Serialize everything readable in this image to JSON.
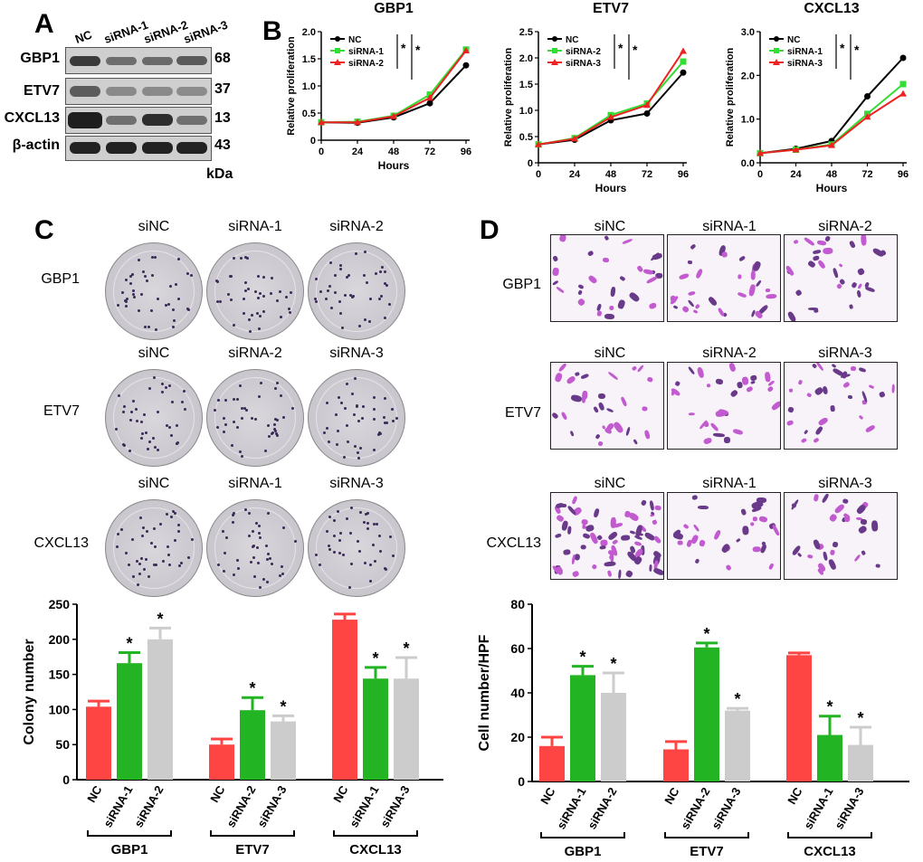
{
  "panel_labels": {
    "A": "A",
    "B": "B",
    "C": "C",
    "D": "D"
  },
  "western_blot": {
    "lanes": [
      "NC",
      "siRNA-1",
      "siRNA-2",
      "siRNA-3"
    ],
    "rows": [
      {
        "protein": "GBP1",
        "kda": "68"
      },
      {
        "protein": "ETV7",
        "kda": "37"
      },
      {
        "protein": "CXCL13",
        "kda": "13"
      },
      {
        "protein": "β-actin",
        "kda": "43"
      }
    ],
    "unit": "kDa"
  },
  "colony_assay": {
    "rows": [
      {
        "gene": "GBP1",
        "columns": [
          "siNC",
          "siRNA-1",
          "siRNA-2"
        ]
      },
      {
        "gene": "ETV7",
        "columns": [
          "siNC",
          "siRNA-2",
          "siRNA-3"
        ]
      },
      {
        "gene": "CXCL13",
        "columns": [
          "siNC",
          "siRNA-1",
          "siRNA-3"
        ]
      }
    ]
  },
  "transwell_assay": {
    "rows": [
      {
        "gene": "GBP1",
        "columns": [
          "siNC",
          "siRNA-1",
          "siRNA-2"
        ]
      },
      {
        "gene": "ETV7",
        "columns": [
          "siNC",
          "siRNA-2",
          "siRNA-3"
        ]
      },
      {
        "gene": "CXCL13",
        "columns": [
          "siNC",
          "siRNA-1",
          "siRNA-3"
        ]
      }
    ]
  },
  "colors": {
    "NC": "#ff4444",
    "siA": "#22b422",
    "siB": "#cccccc",
    "line_NC": "#000000",
    "line_si1": "#33dd33",
    "line_si2": "#ee2222"
  },
  "chart_data": [
    {
      "type": "line",
      "title": "GBP1",
      "xlabel": "Hours",
      "ylabel": "Relative proliferation",
      "x": [
        0,
        24,
        48,
        72,
        96
      ],
      "ylim": [
        0,
        2.0
      ],
      "yticks": [
        "0",
        "0.5",
        "1.0",
        "1.5",
        "2.0"
      ],
      "series": [
        {
          "name": "NC",
          "values": [
            0.33,
            0.32,
            0.42,
            0.68,
            1.38
          ]
        },
        {
          "name": "siRNA-1",
          "values": [
            0.33,
            0.34,
            0.45,
            0.84,
            1.67
          ]
        },
        {
          "name": "siRNA-2",
          "values": [
            0.33,
            0.33,
            0.44,
            0.78,
            1.65
          ]
        }
      ],
      "significance": [
        "*",
        "*"
      ]
    },
    {
      "type": "line",
      "title": "ETV7",
      "xlabel": "Hours",
      "ylabel": "Relative proliferation",
      "x": [
        0,
        24,
        48,
        72,
        96
      ],
      "ylim": [
        0,
        2.5
      ],
      "yticks": [
        "0",
        "0.5",
        "1.0",
        "1.5",
        "2.0",
        "2.5"
      ],
      "series": [
        {
          "name": "NC",
          "values": [
            0.35,
            0.44,
            0.81,
            0.94,
            1.72
          ]
        },
        {
          "name": "siRNA-2",
          "values": [
            0.35,
            0.47,
            0.91,
            1.13,
            1.93
          ]
        },
        {
          "name": "siRNA-3",
          "values": [
            0.35,
            0.46,
            0.87,
            1.1,
            2.13
          ]
        }
      ],
      "significance": [
        "*",
        "*"
      ]
    },
    {
      "type": "line",
      "title": "CXCL13",
      "xlabel": "Hours",
      "ylabel": "Relative proliferation",
      "x": [
        0,
        24,
        48,
        72,
        96
      ],
      "ylim": [
        0,
        3.0
      ],
      "yticks": [
        "0.0",
        "1.0",
        "2.0",
        "3.0"
      ],
      "series": [
        {
          "name": "NC",
          "values": [
            0.22,
            0.32,
            0.5,
            1.52,
            2.4
          ]
        },
        {
          "name": "siRNA-1",
          "values": [
            0.22,
            0.3,
            0.42,
            1.12,
            1.8
          ]
        },
        {
          "name": "siRNA-3",
          "values": [
            0.22,
            0.3,
            0.4,
            1.05,
            1.58
          ]
        }
      ],
      "significance": [
        "*",
        "*"
      ]
    },
    {
      "type": "bar",
      "ylabel": "Colony number",
      "ylim": [
        0,
        250
      ],
      "yticks": [
        "0",
        "50",
        "100",
        "150",
        "200",
        "250"
      ],
      "groups": [
        {
          "gene": "GBP1",
          "categories": [
            "NC",
            "siRNA-1",
            "siRNA-2"
          ],
          "values": [
            104,
            166,
            200
          ],
          "errors": [
            8,
            15,
            16
          ],
          "stars": [
            "",
            "*",
            "*"
          ]
        },
        {
          "gene": "ETV7",
          "categories": [
            "NC",
            "siRNA-2",
            "siRNA-3"
          ],
          "values": [
            50,
            99,
            83
          ],
          "errors": [
            8,
            18,
            8
          ],
          "stars": [
            "",
            "*",
            "*"
          ]
        },
        {
          "gene": "CXCL13",
          "categories": [
            "NC",
            "siRNA-1",
            "siRNA-3"
          ],
          "values": [
            228,
            144,
            144
          ],
          "errors": [
            8,
            16,
            30
          ],
          "stars": [
            "",
            "*",
            "*"
          ]
        }
      ]
    },
    {
      "type": "bar",
      "ylabel": "Cell number/HPF",
      "ylim": [
        0,
        80
      ],
      "yticks": [
        "0",
        "20",
        "40",
        "60",
        "80"
      ],
      "groups": [
        {
          "gene": "GBP1",
          "categories": [
            "NC",
            "siRNA-1",
            "siRNA-2"
          ],
          "values": [
            16,
            48,
            40
          ],
          "errors": [
            4,
            4,
            9
          ],
          "stars": [
            "",
            "*",
            "*"
          ]
        },
        {
          "gene": "ETV7",
          "categories": [
            "NC",
            "siRNA-2",
            "siRNA-3"
          ],
          "values": [
            14.5,
            60.5,
            32
          ],
          "errors": [
            3.5,
            2,
            1
          ],
          "stars": [
            "",
            "*",
            "*"
          ]
        },
        {
          "gene": "CXCL13",
          "categories": [
            "NC",
            "siRNA-1",
            "siRNA-3"
          ],
          "values": [
            57,
            21,
            16.5
          ],
          "errors": [
            1,
            8.5,
            8
          ],
          "stars": [
            "",
            "*",
            "*"
          ]
        }
      ]
    }
  ]
}
